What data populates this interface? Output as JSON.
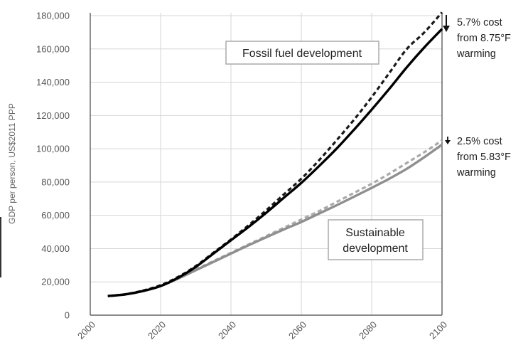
{
  "chart_data": {
    "type": "line",
    "title": "",
    "xlabel": "",
    "ylabel": "GDP per person, US$2011 PPP",
    "xlim": [
      2000,
      2100
    ],
    "ylim": [
      0,
      180000
    ],
    "x_ticks": [
      "2000",
      "2020",
      "2040",
      "2060",
      "2080",
      "2100"
    ],
    "y_ticks": [
      "0",
      "20,000",
      "40,000",
      "60,000",
      "80,000",
      "100,000",
      "120,000",
      "140,000",
      "160,000",
      "180,000"
    ],
    "grid": true,
    "series": [
      {
        "color": "#1a1a1a",
        "dash": "6,4",
        "x": [
          2005,
          2010,
          2015,
          2020,
          2025,
          2030,
          2035,
          2040,
          2045,
          2050,
          2055,
          2060,
          2065,
          2070,
          2075,
          2080,
          2085,
          2090,
          2095,
          2100
        ],
        "values": [
          11500,
          12600,
          14800,
          18000,
          23000,
          29500,
          37500,
          45500,
          54000,
          63000,
          72500,
          82000,
          93000,
          105000,
          117500,
          131000,
          145500,
          160000,
          170000,
          182000
        ]
      },
      {
        "color": "#000000",
        "dash": "",
        "x": [
          2005,
          2010,
          2015,
          2020,
          2025,
          2030,
          2035,
          2040,
          2045,
          2050,
          2055,
          2060,
          2065,
          2070,
          2075,
          2080,
          2085,
          2090,
          2095,
          2100
        ],
        "values": [
          11500,
          12500,
          14500,
          17500,
          22500,
          29000,
          37000,
          45000,
          53000,
          61500,
          70500,
          79500,
          89500,
          100000,
          111500,
          123500,
          136000,
          149000,
          161000,
          172000
        ]
      },
      {
        "color": "#aaaaaa",
        "dash": "6,4",
        "x": [
          2005,
          2010,
          2015,
          2020,
          2025,
          2030,
          2035,
          2040,
          2045,
          2050,
          2055,
          2060,
          2065,
          2070,
          2075,
          2080,
          2085,
          2090,
          2095,
          2100
        ],
        "values": [
          11500,
          12600,
          14800,
          18000,
          22500,
          27500,
          32500,
          37500,
          42500,
          47500,
          52500,
          57500,
          62500,
          68000,
          73500,
          79000,
          85000,
          91500,
          98000,
          105000
        ]
      },
      {
        "color": "#8f8f8f",
        "dash": "",
        "x": [
          2005,
          2010,
          2015,
          2020,
          2025,
          2030,
          2035,
          2040,
          2045,
          2050,
          2055,
          2060,
          2065,
          2070,
          2075,
          2080,
          2085,
          2090,
          2095,
          2100
        ],
        "values": [
          11500,
          12500,
          14500,
          17500,
          22000,
          27000,
          32000,
          37000,
          42000,
          46800,
          51500,
          56000,
          61000,
          66000,
          71200,
          76500,
          82000,
          88000,
          95000,
          102500
        ]
      }
    ],
    "annotations": {
      "fossil_box": "Fossil fuel development",
      "sustainable_box_line1": "Sustainable",
      "sustainable_box_line2": "development",
      "fossil_note": [
        "5.7% cost",
        "from 8.75°F",
        "warming"
      ],
      "sustainable_note": [
        "2.5% cost",
        "from 5.83°F",
        "warming"
      ]
    }
  }
}
